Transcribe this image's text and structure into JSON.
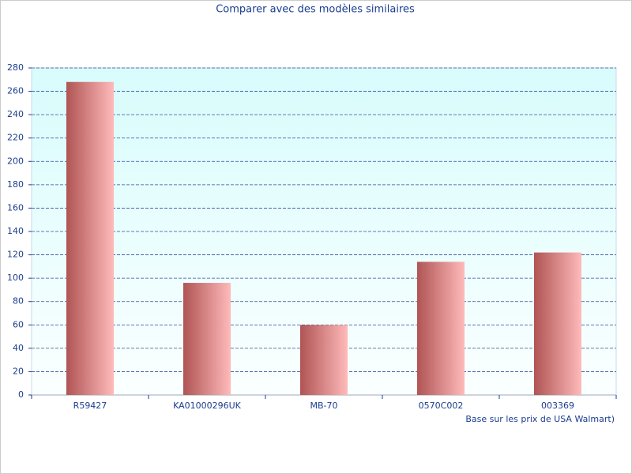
{
  "chart_data": {
    "type": "bar",
    "title": "Comparer avec des modèles similaires",
    "categories": [
      "R59427",
      "KA01000296UK",
      "MB-70",
      "0570C002",
      "003369"
    ],
    "values": [
      268,
      96,
      60,
      114,
      122
    ],
    "gradient": [
      "#b05454",
      "#ffbaba"
    ],
    "xlabel": "Base sur les prix de USA Walmart)",
    "ylim": [
      0,
      280
    ],
    "yticks": [
      0,
      20,
      40,
      60,
      80,
      100,
      120,
      140,
      160,
      180,
      200,
      220,
      240,
      260,
      280
    ],
    "grid": true
  }
}
